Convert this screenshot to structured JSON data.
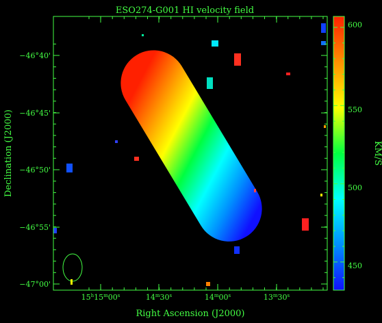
{
  "chart_data": {
    "type": "heatmap",
    "title": "ESO274-G001   HI velocity field",
    "xlabel": "Right Ascension (J2000)",
    "ylabel": "Declination (J2000)",
    "colorbar_label": "KM/S",
    "colorbar_ticks": [
      450,
      500,
      550,
      600
    ],
    "colorbar_range": [
      432,
      607
    ],
    "colormap": [
      "#1010ff",
      "#0090ff",
      "#00ffff",
      "#00ff40",
      "#ffff00",
      "#ff9000",
      "#ff2000"
    ],
    "frame_color": "#44ff44",
    "x_ticks": [
      {
        "h": "15",
        "m": "15",
        "s": "00"
      },
      {
        "m": "14",
        "s": "30"
      },
      {
        "m": "14",
        "s": "00"
      },
      {
        "m": "13",
        "s": "30"
      }
    ],
    "y_ticks": [
      "−46°40'",
      "−46°45'",
      "−46°50'",
      "−46°55'",
      "−47°00'"
    ],
    "galaxy": {
      "velocity_range": [
        440,
        607
      ],
      "gradient_direction": "north-west high, south-east low"
    }
  }
}
